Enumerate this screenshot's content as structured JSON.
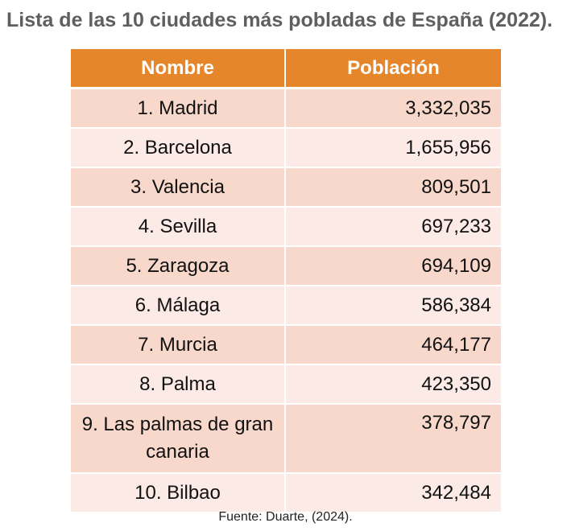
{
  "title": "Lista de las 10 ciudades más pobladas de España (2022).",
  "table": {
    "headers": {
      "name": "Nombre",
      "population": "Población"
    },
    "rows": [
      {
        "city": "1. Madrid",
        "population": "3,332,035"
      },
      {
        "city": "2. Barcelona",
        "population": "1,655,956"
      },
      {
        "city": "3. Valencia",
        "population": "809,501"
      },
      {
        "city": "4. Sevilla",
        "population": "697,233"
      },
      {
        "city": "5. Zaragoza",
        "population": "694,109"
      },
      {
        "city": "6. Málaga",
        "population": "586,384"
      },
      {
        "city": "7. Murcia",
        "population": "464,177"
      },
      {
        "city": "8. Palma",
        "population": "423,350"
      },
      {
        "city": "9. Las palmas de gran canaria",
        "population": "378,797"
      },
      {
        "city": "10. Bilbao",
        "population": "342,484"
      }
    ]
  },
  "source": "Fuente: Duarte, (2024).",
  "colors": {
    "header_bg": "#e5862a",
    "row_odd": "#f7d8ca",
    "row_even": "#fbeae5",
    "title_text": "#5f5f5f"
  }
}
